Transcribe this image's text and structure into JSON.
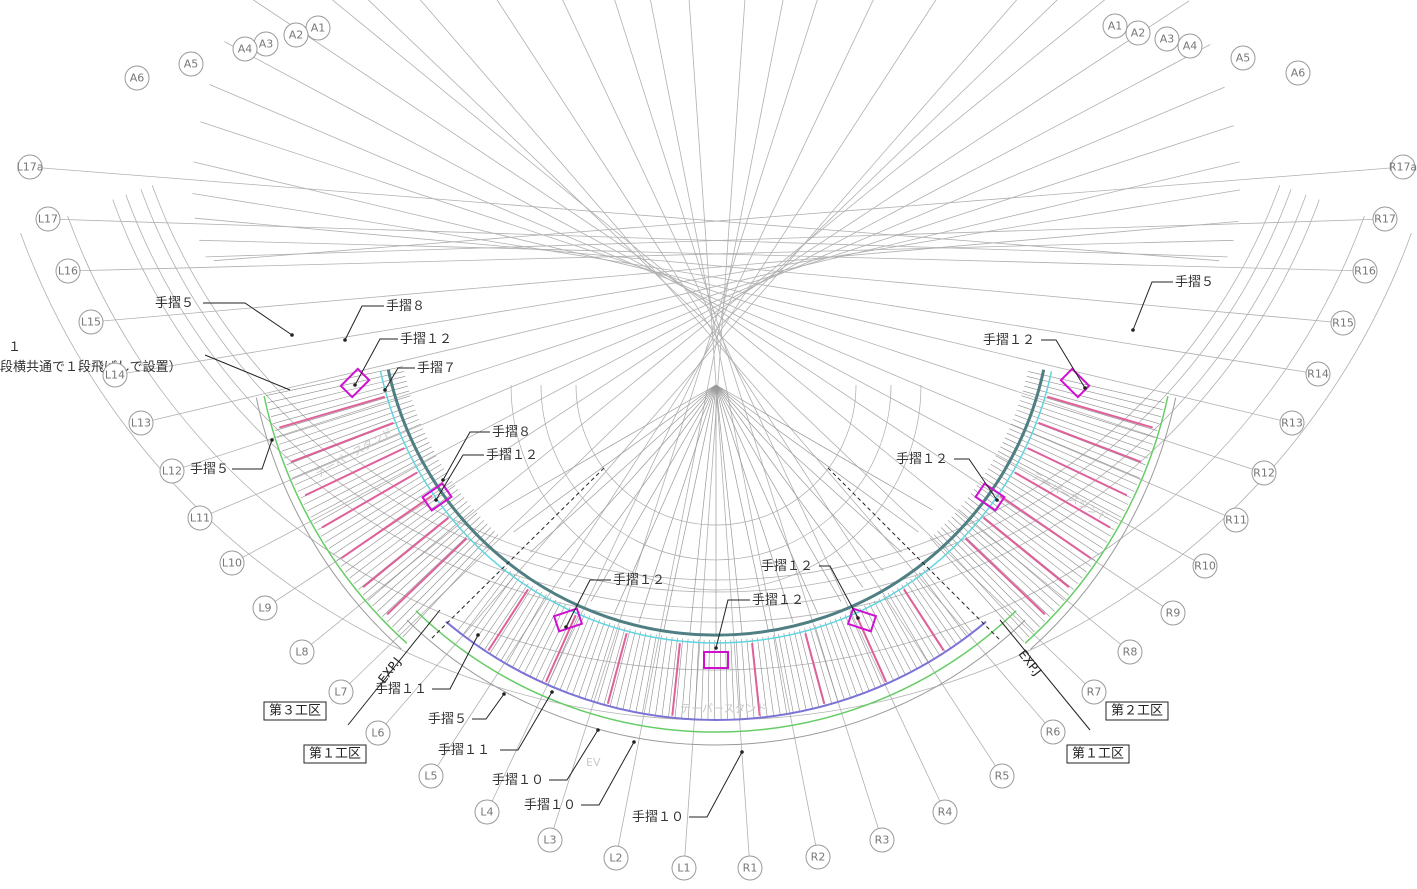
{
  "grid_left": [
    "L1",
    "L2",
    "L3",
    "L4",
    "L5",
    "L6",
    "L7",
    "L8",
    "L9",
    "L10",
    "L11",
    "L12",
    "L13",
    "L14",
    "L15",
    "L16",
    "L17",
    "L17a"
  ],
  "grid_right": [
    "R1",
    "R2",
    "R3",
    "R4",
    "R5",
    "R6",
    "R7",
    "R8",
    "R9",
    "R10",
    "R11",
    "R12",
    "R13",
    "R14",
    "R15",
    "R16",
    "R17",
    "R17a"
  ],
  "arc_left": [
    "A1",
    "A2",
    "A3",
    "A4",
    "A5",
    "A6"
  ],
  "arc_right": [
    "A1",
    "A2",
    "A3",
    "A4",
    "A5",
    "A6"
  ],
  "callouts": {
    "c_l_5a": "手摺５",
    "c_l_8a": "手摺８",
    "c_l_12a": "手摺１２",
    "c_l_7": "手摺７",
    "c_l_5b": "手摺５",
    "c_l_8b": "手摺８",
    "c_l_12b": "手摺１２",
    "c_c_12a": "手摺１２",
    "c_c_12b": "手摺１２",
    "c_c_12c": "手摺１２",
    "c_l_11a": "手摺１１",
    "c_l_5c": "手摺５",
    "c_l_11b": "手摺１１",
    "c_l_10a": "手摺１０",
    "c_l_10b": "手摺１０",
    "c_c_10": "手摺１０",
    "c_r_5": "手摺５",
    "c_r_12a": "手摺１２",
    "c_r_12b": "手摺１２"
  },
  "notes": {
    "left_note_number": "１",
    "left_note_text": "段横共通で１段飛ばしで設置）"
  },
  "exp_joints": {
    "left": "EXP.J",
    "right": "EXP.J"
  },
  "zones": {
    "zone3": "第３工区",
    "zone1_left": "第１工区",
    "zone2": "第２工区",
    "zone1_right": "第１工区"
  },
  "faint_labels": {
    "left_stand": "テーパースタンド",
    "right_stand": "テーパースタンド",
    "center_stand": "テーパースタンド",
    "ev": "EV"
  },
  "colors": {
    "grid_line": "#b0b0b0",
    "steps": "#8c8c8c",
    "railing_pink": "#e0609a",
    "magenta": "#d010d0",
    "teal": "#4f7f82",
    "cyan": "#5fd6e0",
    "green": "#66cc66",
    "purple": "#7b73d6"
  }
}
